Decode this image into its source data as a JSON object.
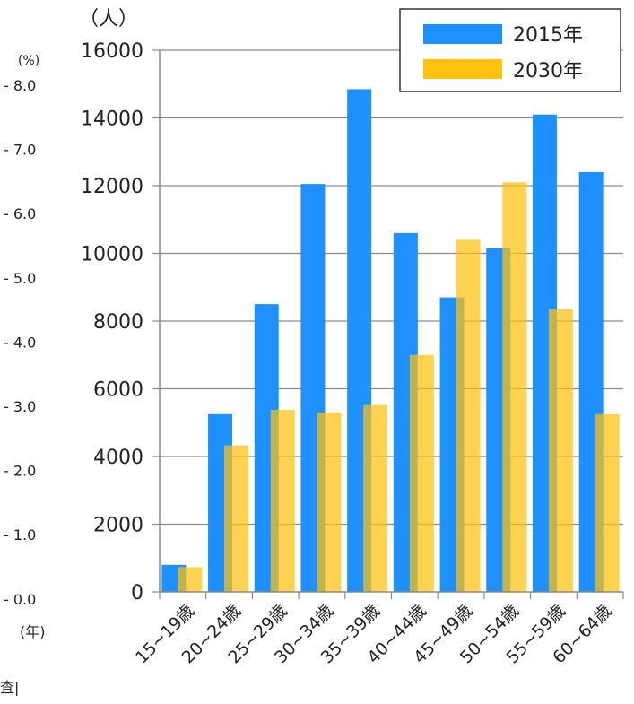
{
  "chart_data": {
    "type": "bar",
    "categories": [
      "15~19歳",
      "20~24歳",
      "25~29歳",
      "30~34歳",
      "35~39歳",
      "40~44歳",
      "45~49歳",
      "50~54歳",
      "55~59歳",
      "60~64歳"
    ],
    "series": [
      {
        "name": "2015年",
        "values": [
          800,
          5250,
          8500,
          12050,
          14850,
          10600,
          8700,
          10150,
          14100,
          12400
        ],
        "color": "#1E90FF"
      },
      {
        "name": "2030年",
        "values": [
          730,
          4330,
          5380,
          5300,
          5520,
          7000,
          10400,
          12100,
          8350,
          5250
        ],
        "color": "#FFC20E"
      }
    ],
    "ylabel": "（人）",
    "ylim": [
      0,
      16000
    ],
    "yticks": [
      0,
      2000,
      4000,
      6000,
      8000,
      10000,
      12000,
      14000,
      16000
    ],
    "grid": true,
    "legend_position": "top-right"
  },
  "background_fragment": {
    "unit_label": "(%)",
    "ticks": [
      "8.0",
      "7.0",
      "6.0",
      "5.0",
      "4.0",
      "3.0",
      "2.0",
      "1.0",
      "0.0"
    ],
    "year_label": "(年)",
    "cut_text": "査|"
  }
}
